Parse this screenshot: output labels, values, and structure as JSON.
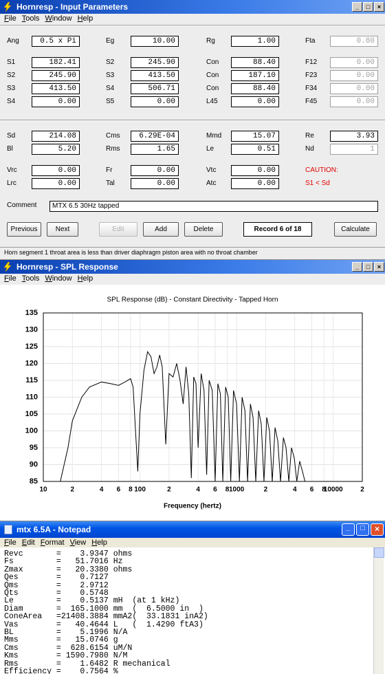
{
  "input_window": {
    "title": "Hornresp - Input Parameters",
    "menu": [
      "File",
      "Tools",
      "Window",
      "Help"
    ],
    "rows": [
      [
        {
          "label": "Ang",
          "value": "0.5 x Pi"
        },
        {
          "label": "Eg",
          "value": "10.00"
        },
        {
          "label": "Rg",
          "value": "1.00"
        },
        {
          "label": "Fta",
          "value": "0.80"
        }
      ],
      [
        {
          "label": "S1",
          "value": "182.41"
        },
        {
          "label": "S2",
          "value": "245.90"
        },
        {
          "label": "Con",
          "value": "88.40"
        },
        {
          "label": "F12",
          "value": "0.00"
        }
      ],
      [
        {
          "label": "S2",
          "value": "245.90"
        },
        {
          "label": "S3",
          "value": "413.50"
        },
        {
          "label": "Con",
          "value": "187.10"
        },
        {
          "label": "F23",
          "value": "0.00"
        }
      ],
      [
        {
          "label": "S3",
          "value": "413.50"
        },
        {
          "label": "S4",
          "value": "506.71"
        },
        {
          "label": "Con",
          "value": "88.40"
        },
        {
          "label": "F34",
          "value": "0.00"
        }
      ],
      [
        {
          "label": "S4",
          "value": "0.00"
        },
        {
          "label": "S5",
          "value": "0.00"
        },
        {
          "label": "L45",
          "value": "0.00"
        },
        {
          "label": "F45",
          "value": "0.00"
        }
      ],
      [
        {
          "label": "Sd",
          "value": "214.08"
        },
        {
          "label": "Cms",
          "value": "6.29E-04"
        },
        {
          "label": "Mmd",
          "value": "15.07"
        },
        {
          "label": "Re",
          "value": "3.93"
        }
      ],
      [
        {
          "label": "Bl",
          "value": "5.20"
        },
        {
          "label": "Rms",
          "value": "1.65"
        },
        {
          "label": "Le",
          "value": "0.51"
        },
        {
          "label": "Nd",
          "value": "1"
        }
      ],
      [
        {
          "label": "Vrc",
          "value": "0.00"
        },
        {
          "label": "Fr",
          "value": "0.00"
        },
        {
          "label": "Vtc",
          "value": "0.00"
        }
      ],
      [
        {
          "label": "Lrc",
          "value": "0.00"
        },
        {
          "label": "Tal",
          "value": "0.00"
        },
        {
          "label": "Atc",
          "value": "0.00"
        }
      ]
    ],
    "caution": [
      "CAUTION:",
      "S1 < Sd"
    ],
    "comment_label": "Comment",
    "comment": "MTX 6.5 30Hz tapped",
    "buttons": [
      "Previous",
      "Next",
      "Edit",
      "Add",
      "Delete"
    ],
    "record": "Record 6 of 18",
    "calculate": "Calculate",
    "status": "Horn segment 1 throat area is less than driver diaphragm piston area with no throat chamber"
  },
  "spl_window": {
    "title": "Hornresp - SPL Response",
    "menu": [
      "File",
      "Tools",
      "Window",
      "Help"
    ]
  },
  "chart_data": {
    "type": "line",
    "title": "SPL Response (dB) - Constant Directivity - Tapped Horn",
    "x_label": "Frequency (hertz)",
    "x": [
      15,
      18,
      20,
      25,
      30,
      40,
      50,
      60,
      70,
      80,
      85,
      90,
      95,
      100,
      110,
      120,
      130,
      140,
      150,
      160,
      170,
      185,
      200,
      220,
      240,
      260,
      280,
      300,
      320,
      340,
      360,
      380,
      400,
      430,
      460,
      490,
      520,
      560,
      600,
      640,
      680,
      720,
      770,
      820,
      870,
      930,
      1000,
      1070,
      1140,
      1220,
      1300,
      1390,
      1480,
      1580,
      1690,
      1800,
      1920,
      2050,
      2190,
      2340,
      2500,
      2670,
      2850,
      3050,
      3250,
      3470,
      3700,
      3950,
      4200,
      4500,
      4800,
      5100
    ],
    "values": [
      85,
      95,
      103,
      110,
      113,
      114.5,
      114,
      113.5,
      114.5,
      115.5,
      113,
      100,
      88,
      105,
      118,
      123.5,
      122,
      117,
      119,
      122.5,
      119,
      96,
      117,
      116,
      120,
      115,
      108,
      119,
      111,
      86,
      116,
      114,
      95,
      117,
      112,
      87,
      115,
      112,
      85,
      114,
      111,
      85,
      113,
      110,
      85,
      112,
      108,
      85,
      110,
      106,
      85,
      108,
      104,
      85,
      106,
      102,
      85,
      104,
      100,
      85,
      101,
      97,
      85,
      98,
      95,
      85,
      95,
      92,
      85,
      91,
      88,
      85
    ],
    "color": "#000000",
    "log_x": true,
    "xlim": [
      10,
      20000
    ],
    "xticks": [
      {
        "value": 10,
        "label": "10"
      },
      {
        "value": 20,
        "label": "2"
      },
      {
        "value": 40,
        "label": "4"
      },
      {
        "value": 60,
        "label": "6"
      },
      {
        "value": 80,
        "label": "8"
      },
      {
        "value": 100,
        "label": "100"
      },
      {
        "value": 200,
        "label": "2"
      },
      {
        "value": 400,
        "label": "4"
      },
      {
        "value": 600,
        "label": "6"
      },
      {
        "value": 800,
        "label": "8"
      },
      {
        "value": 1000,
        "label": "1000"
      },
      {
        "value": 2000,
        "label": "2"
      },
      {
        "value": 4000,
        "label": "4"
      },
      {
        "value": 6000,
        "label": "6"
      },
      {
        "value": 8000,
        "label": "8"
      },
      {
        "value": 10000,
        "label": "10000"
      },
      {
        "value": 20000,
        "label": "2"
      }
    ],
    "ylim": [
      85,
      135
    ],
    "yticks": [
      85,
      90,
      95,
      100,
      105,
      110,
      115,
      120,
      125,
      130,
      135
    ],
    "grid": true
  },
  "notepad": {
    "title": "mtx 6.5A - Notepad",
    "menu": [
      "File",
      "Edit",
      "Format",
      "View",
      "Help"
    ],
    "lines": [
      "Revc       =    3.9347 ohms",
      "Fs         =   51.7016 Hz",
      "Zmax       =   20.3380 ohms",
      "Qes        =    0.7127",
      "Qms        =    2.9712",
      "Qts        =    0.5748",
      "Le         =    0.5137 mH  (at 1 kHz)",
      "Diam       =  165.1000 mm  (  6.5000 in  )",
      "ConeArea   =21408.3884 mmA2(  33.1831 inA2)",
      "Vas        =   40.4644 L   (  1.4290 ftA3)",
      "BL         =    5.1996 N/A",
      "Mms        =   15.0746 g",
      "Cms        =  628.6154 uM/N",
      "Kms        = 1590.7980 N/M",
      "Rms        =    1.6482 R mechanical",
      "Efficiency =    0.7564 %"
    ]
  }
}
